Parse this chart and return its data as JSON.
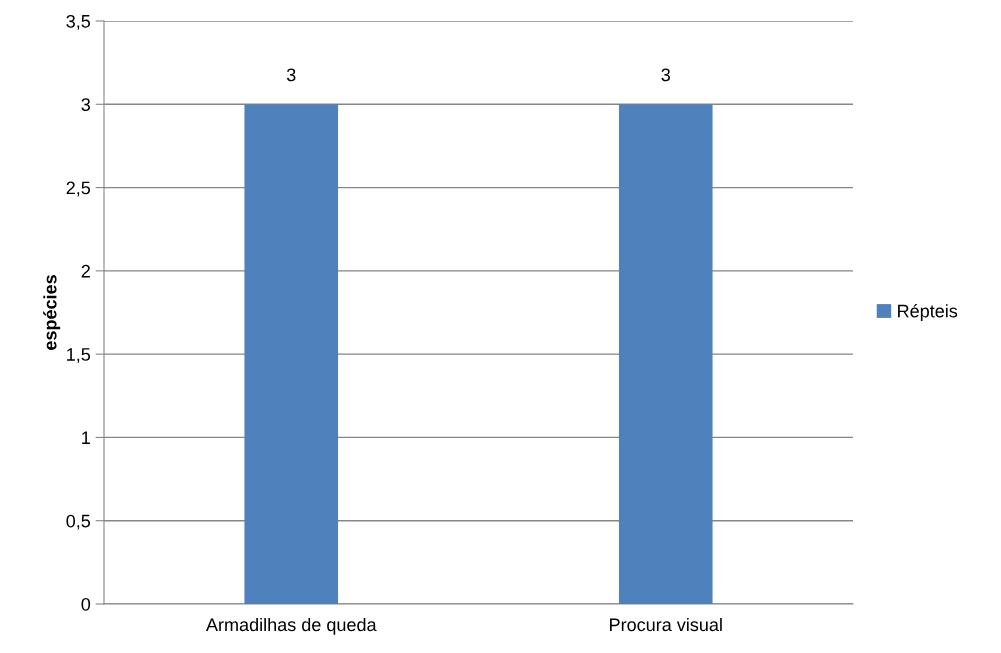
{
  "chart_data": {
    "type": "bar",
    "ylabel": "espécies",
    "categories": [
      "Armadilhas de queda",
      "Procura visual"
    ],
    "series": [
      {
        "name": "Répteis",
        "color": "#4f81bd",
        "values": [
          3,
          3
        ]
      }
    ],
    "ylim": [
      0,
      3.5
    ],
    "yticks": [
      {
        "value": 0,
        "label": "0"
      },
      {
        "value": 0.5,
        "label": "0,5"
      },
      {
        "value": 1,
        "label": "1"
      },
      {
        "value": 1.5,
        "label": "1,5"
      },
      {
        "value": 2,
        "label": "2"
      },
      {
        "value": 2.5,
        "label": "2,5"
      },
      {
        "value": 3,
        "label": "3"
      },
      {
        "value": 3.5,
        "label": "3,5"
      }
    ],
    "grid": "y",
    "legend": "right",
    "data_labels": true
  }
}
